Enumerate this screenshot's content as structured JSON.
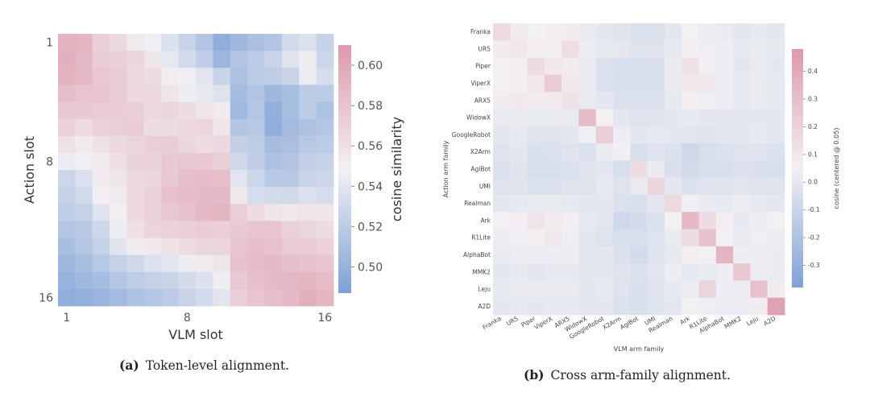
{
  "chart_data": [
    {
      "type": "heatmap",
      "id": "a",
      "xlabel": "VLM slot",
      "ylabel": "Action slot",
      "x_ticks": [
        "1",
        "8",
        "16"
      ],
      "y_ticks": [
        "1",
        "8",
        "16"
      ],
      "colorbar": {
        "label": "cosine similarity",
        "ticks": [
          "0.50",
          "0.52",
          "0.54",
          "0.56",
          "0.58",
          "0.60"
        ],
        "range": [
          0.487,
          0.61
        ],
        "low_color": "#7ea1d6",
        "mid_color": "#f2f0f3",
        "high_color": "#dd9aab"
      },
      "grid": false,
      "values": [
        [
          0.592,
          0.59,
          0.572,
          0.565,
          0.553,
          0.547,
          0.537,
          0.526,
          0.515,
          0.497,
          0.505,
          0.511,
          0.515,
          0.532,
          0.537,
          0.525
        ],
        [
          0.594,
          0.589,
          0.574,
          0.572,
          0.567,
          0.556,
          0.542,
          0.532,
          0.522,
          0.503,
          0.515,
          0.52,
          0.526,
          0.538,
          0.546,
          0.528
        ],
        [
          0.592,
          0.589,
          0.578,
          0.575,
          0.566,
          0.563,
          0.551,
          0.548,
          0.54,
          0.526,
          0.512,
          0.52,
          0.521,
          0.526,
          0.545,
          0.533
        ],
        [
          0.584,
          0.58,
          0.579,
          0.575,
          0.566,
          0.566,
          0.557,
          0.546,
          0.543,
          0.538,
          0.508,
          0.514,
          0.505,
          0.51,
          0.52,
          0.52
        ],
        [
          0.578,
          0.576,
          0.575,
          0.574,
          0.572,
          0.566,
          0.567,
          0.562,
          0.557,
          0.552,
          0.506,
          0.516,
          0.498,
          0.51,
          0.52,
          0.512
        ],
        [
          0.57,
          0.564,
          0.57,
          0.573,
          0.574,
          0.563,
          0.563,
          0.566,
          0.567,
          0.557,
          0.515,
          0.518,
          0.497,
          0.507,
          0.513,
          0.516
        ],
        [
          0.559,
          0.553,
          0.559,
          0.566,
          0.568,
          0.573,
          0.574,
          0.567,
          0.563,
          0.566,
          0.523,
          0.521,
          0.509,
          0.511,
          0.518,
          0.52
        ],
        [
          0.545,
          0.547,
          0.552,
          0.561,
          0.569,
          0.571,
          0.576,
          0.578,
          0.578,
          0.573,
          0.53,
          0.522,
          0.513,
          0.515,
          0.523,
          0.524
        ],
        [
          0.528,
          0.536,
          0.552,
          0.556,
          0.566,
          0.567,
          0.576,
          0.584,
          0.586,
          0.585,
          0.54,
          0.528,
          0.519,
          0.518,
          0.527,
          0.528
        ],
        [
          0.524,
          0.531,
          0.548,
          0.553,
          0.565,
          0.571,
          0.582,
          0.586,
          0.587,
          0.588,
          0.555,
          0.533,
          0.532,
          0.531,
          0.537,
          0.533
        ],
        [
          0.522,
          0.524,
          0.538,
          0.549,
          0.565,
          0.571,
          0.577,
          0.582,
          0.587,
          0.59,
          0.573,
          0.562,
          0.557,
          0.555,
          0.557,
          0.556
        ],
        [
          0.516,
          0.519,
          0.529,
          0.546,
          0.561,
          0.568,
          0.57,
          0.572,
          0.575,
          0.572,
          0.576,
          0.58,
          0.58,
          0.571,
          0.567,
          0.563
        ],
        [
          0.51,
          0.516,
          0.524,
          0.539,
          0.552,
          0.554,
          0.558,
          0.562,
          0.567,
          0.567,
          0.58,
          0.584,
          0.582,
          0.575,
          0.574,
          0.57
        ],
        [
          0.505,
          0.51,
          0.517,
          0.524,
          0.53,
          0.537,
          0.54,
          0.546,
          0.552,
          0.556,
          0.581,
          0.586,
          0.587,
          0.583,
          0.582,
          0.58
        ],
        [
          0.5,
          0.505,
          0.508,
          0.516,
          0.521,
          0.524,
          0.527,
          0.532,
          0.537,
          0.546,
          0.577,
          0.583,
          0.588,
          0.589,
          0.59,
          0.586
        ],
        [
          0.497,
          0.498,
          0.502,
          0.507,
          0.512,
          0.516,
          0.52,
          0.526,
          0.531,
          0.54,
          0.573,
          0.579,
          0.584,
          0.588,
          0.595,
          0.59
        ]
      ]
    },
    {
      "type": "heatmap",
      "id": "b",
      "xlabel": "VLM arm family",
      "ylabel": "Action arm family",
      "categories": [
        "Franka",
        "UR5",
        "Piper",
        "ViperX",
        "ARX5",
        "WidowX",
        "GoogleRobot",
        "X2Arm",
        "AgiBot",
        "UMI",
        "Realman",
        "Ark",
        "R1Lite",
        "AlphaBot",
        "MMK2",
        "Leju",
        "A2D"
      ],
      "colorbar": {
        "label": "cosine (centered @ 0.05)",
        "ticks": [
          "0.4",
          "0.3",
          "0.2",
          "0.1",
          "0.0",
          "-0.1",
          "-0.2",
          "-0.3"
        ],
        "range": [
          -0.38,
          0.48
        ],
        "low_color": "#7ea1d6",
        "mid_color": "#f2f0f3",
        "high_color": "#dd9aab"
      },
      "grid": false,
      "values": [
        [
          0.16,
          0.08,
          0.05,
          0.06,
          0.07,
          0.02,
          0.0,
          -0.02,
          -0.03,
          -0.03,
          0.0,
          0.05,
          0.03,
          0.02,
          0.0,
          0.01,
          0.0
        ],
        [
          0.07,
          0.1,
          0.06,
          0.06,
          0.14,
          0.03,
          0.01,
          0.0,
          -0.02,
          -0.02,
          0.01,
          0.06,
          0.04,
          0.03,
          0.01,
          0.02,
          0.01
        ],
        [
          0.05,
          0.06,
          0.15,
          0.09,
          0.08,
          0.02,
          -0.03,
          -0.05,
          -0.05,
          -0.04,
          0.02,
          0.12,
          0.06,
          0.03,
          0.0,
          0.02,
          0.0
        ],
        [
          0.05,
          0.06,
          0.1,
          0.23,
          0.09,
          0.02,
          -0.03,
          -0.04,
          -0.05,
          -0.04,
          0.02,
          0.09,
          0.1,
          0.03,
          0.01,
          0.02,
          0.01
        ],
        [
          0.07,
          0.09,
          0.07,
          0.08,
          0.12,
          0.02,
          0.0,
          -0.03,
          -0.03,
          -0.03,
          0.01,
          0.06,
          0.04,
          0.03,
          0.01,
          0.02,
          0.01
        ],
        [
          0.02,
          0.02,
          0.02,
          0.02,
          0.02,
          0.31,
          0.05,
          0.0,
          -0.02,
          -0.02,
          0.0,
          0.01,
          0.0,
          0.0,
          0.0,
          0.0,
          0.0
        ],
        [
          0.0,
          0.01,
          -0.02,
          -0.02,
          0.0,
          0.04,
          0.22,
          0.03,
          0.0,
          0.01,
          0.0,
          -0.01,
          -0.02,
          0.0,
          0.0,
          0.01,
          0.0
        ],
        [
          -0.02,
          0.0,
          -0.04,
          -0.03,
          -0.02,
          -0.03,
          0.02,
          0.06,
          -0.05,
          -0.02,
          -0.03,
          -0.08,
          -0.05,
          -0.03,
          -0.02,
          -0.02,
          -0.03
        ],
        [
          -0.03,
          -0.02,
          -0.05,
          -0.05,
          -0.03,
          -0.02,
          0.0,
          -0.05,
          0.15,
          0.02,
          -0.04,
          -0.06,
          -0.05,
          -0.05,
          -0.03,
          -0.04,
          -0.05
        ],
        [
          -0.02,
          -0.02,
          -0.03,
          -0.03,
          -0.02,
          -0.02,
          0.01,
          -0.02,
          0.02,
          0.18,
          0.0,
          -0.03,
          -0.02,
          -0.02,
          -0.01,
          -0.02,
          -0.02
        ],
        [
          0.0,
          0.01,
          0.02,
          0.02,
          0.01,
          0.0,
          0.0,
          -0.03,
          -0.04,
          0.0,
          0.16,
          0.04,
          0.02,
          0.01,
          0.03,
          0.01,
          0.0
        ],
        [
          0.05,
          0.06,
          0.11,
          0.08,
          0.06,
          0.01,
          -0.01,
          -0.08,
          -0.06,
          -0.03,
          0.05,
          0.32,
          0.15,
          0.06,
          0.01,
          0.03,
          0.05
        ],
        [
          0.03,
          0.04,
          0.06,
          0.09,
          0.04,
          0.0,
          -0.02,
          -0.05,
          -0.05,
          -0.02,
          0.02,
          0.15,
          0.28,
          0.05,
          0.02,
          0.04,
          0.03
        ],
        [
          0.02,
          0.03,
          0.03,
          0.03,
          0.03,
          0.0,
          0.0,
          -0.03,
          -0.06,
          -0.02,
          0.01,
          0.06,
          0.05,
          0.35,
          0.03,
          0.03,
          0.02
        ],
        [
          0.0,
          0.01,
          0.0,
          0.01,
          0.01,
          0.0,
          0.0,
          -0.02,
          -0.03,
          -0.01,
          0.03,
          0.01,
          0.02,
          0.03,
          0.24,
          0.03,
          0.02
        ],
        [
          0.01,
          0.02,
          0.02,
          0.02,
          0.02,
          0.0,
          0.01,
          -0.02,
          -0.04,
          -0.02,
          0.01,
          0.03,
          0.19,
          0.03,
          0.03,
          0.28,
          0.07
        ],
        [
          0.0,
          0.01,
          0.0,
          0.01,
          0.01,
          0.0,
          0.0,
          -0.03,
          -0.05,
          -0.02,
          0.0,
          0.05,
          0.04,
          0.03,
          0.03,
          0.07,
          0.44
        ]
      ]
    }
  ],
  "captions": [
    {
      "label": "(a)",
      "text": "Token-level alignment."
    },
    {
      "label": "(b)",
      "text": "Cross arm-family alignment."
    }
  ]
}
